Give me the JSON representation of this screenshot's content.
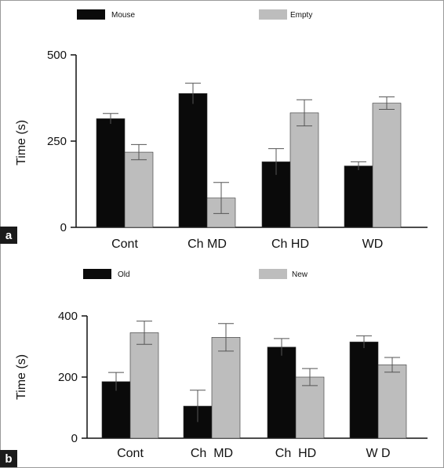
{
  "colors": {
    "series_dark": "#0a0a0a",
    "series_light": "#bdbdbd",
    "axis": "#111111",
    "label_bg": "#1a1a1a",
    "border": "#9a9a9a"
  },
  "chart_data": [
    {
      "panel_label": "a",
      "type": "bar",
      "title": "",
      "xlabel": "",
      "ylabel": "Time (s)",
      "ylim": [
        0,
        500
      ],
      "yticks": [
        0,
        250,
        500
      ],
      "tick_labels": [
        "0",
        "250",
        "500"
      ],
      "categories": [
        "Cont",
        "Ch MD",
        "Ch HD",
        "WD"
      ],
      "legend_position": "top",
      "series": [
        {
          "name": "Mouse",
          "color": "#0a0a0a",
          "values": [
            315,
            388,
            190,
            178
          ],
          "errors": [
            15,
            30,
            38,
            12
          ]
        },
        {
          "name": "Empty",
          "color": "#bdbdbd",
          "values": [
            218,
            85,
            332,
            360
          ],
          "errors": [
            22,
            45,
            38,
            18
          ]
        }
      ]
    },
    {
      "panel_label": "b",
      "type": "bar",
      "title": "",
      "xlabel": "",
      "ylabel": "Time  (s)",
      "ylim": [
        0,
        400
      ],
      "yticks": [
        0,
        200,
        400
      ],
      "tick_labels": [
        "0",
        "200",
        "400"
      ],
      "categories": [
        "Cont",
        "Ch  MD",
        "Ch  HD",
        "W D"
      ],
      "legend_position": "top",
      "series": [
        {
          "name": "Old",
          "color": "#0a0a0a",
          "values": [
            185,
            105,
            298,
            315
          ],
          "errors": [
            30,
            52,
            28,
            20
          ]
        },
        {
          "name": "New",
          "color": "#bdbdbd",
          "values": [
            345,
            330,
            200,
            240
          ],
          "errors": [
            38,
            45,
            28,
            24
          ]
        }
      ]
    }
  ]
}
